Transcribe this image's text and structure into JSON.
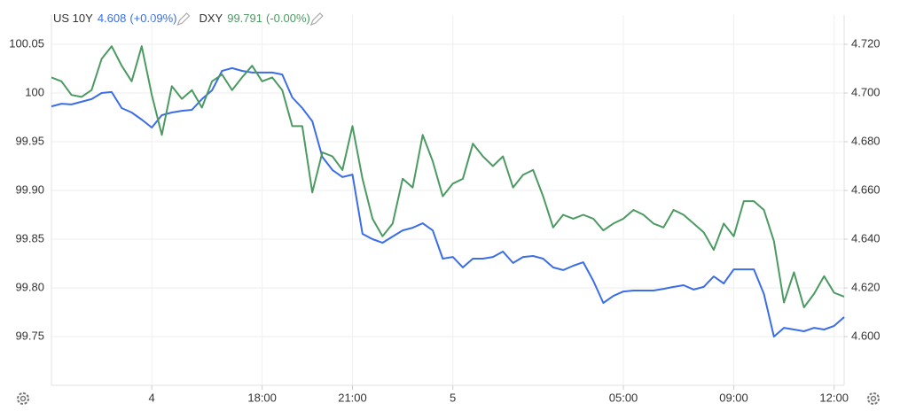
{
  "chart_data": {
    "type": "line",
    "categories": [
      null,
      null,
      null,
      null,
      null,
      null,
      null,
      null,
      null,
      null,
      "4",
      null,
      null,
      null,
      null,
      null,
      null,
      null,
      null,
      null,
      null,
      "18:00",
      null,
      null,
      null,
      null,
      null,
      null,
      null,
      null,
      "21:00",
      null,
      null,
      null,
      null,
      null,
      null,
      null,
      null,
      null,
      "5",
      null,
      null,
      null,
      null,
      null,
      null,
      null,
      null,
      null,
      null,
      null,
      null,
      null,
      null,
      null,
      null,
      "05:00",
      null,
      null,
      null,
      null,
      null,
      null,
      null,
      null,
      null,
      null,
      "09:00",
      null,
      null,
      null,
      null,
      null,
      null,
      null,
      null,
      null,
      "12:00",
      null
    ],
    "series": [
      {
        "name": "US 10Y",
        "color": "#3b6de8",
        "axis": "y2",
        "value_label": "4.608",
        "change": "(+0.09%)",
        "values": [
          4.6945,
          4.6956,
          4.6953,
          4.6964,
          4.6975,
          4.7,
          4.7004,
          4.6938,
          4.692,
          4.6891,
          4.6858,
          4.6909,
          4.692,
          4.6927,
          4.6931,
          4.6975,
          4.7011,
          4.7091,
          4.7102,
          4.7091,
          4.7084,
          4.7084,
          4.7084,
          4.7076,
          4.6982,
          4.6938,
          4.6884,
          4.6738,
          4.6684,
          4.6655,
          4.6665,
          4.6422,
          4.64,
          4.6385,
          4.6411,
          4.6436,
          4.6447,
          4.6465,
          4.6436,
          4.632,
          4.6327,
          4.6284,
          4.632,
          4.632,
          4.6327,
          4.6349,
          4.6302,
          4.6327,
          4.6331,
          4.632,
          4.6284,
          4.6273,
          4.6291,
          4.6305,
          4.6229,
          4.6138,
          4.6167,
          4.6185,
          4.6189,
          4.6189,
          4.6189,
          4.6196,
          4.6204,
          4.6211,
          4.6193,
          4.6204,
          4.6247,
          4.6218,
          4.6276,
          4.6276,
          4.6276,
          4.6175,
          4.6,
          4.6036,
          4.6029,
          4.6022,
          4.6036,
          4.6029,
          4.6044,
          4.608
        ]
      },
      {
        "name": "DXY",
        "color": "#4c9a62",
        "value_label": "99.791",
        "change": "(-0.00%)",
        "values": [
          100.016,
          100.012,
          99.998,
          99.996,
          100.003,
          100.035,
          100.048,
          100.028,
          100.012,
          100.048,
          99.998,
          99.957,
          100.007,
          99.994,
          100.003,
          99.985,
          100.012,
          100.019,
          100.003,
          100.016,
          100.028,
          100.012,
          100.016,
          100.003,
          99.966,
          99.966,
          99.898,
          99.939,
          99.935,
          99.921,
          99.966,
          99.912,
          99.871,
          99.853,
          99.866,
          99.912,
          99.903,
          99.957,
          99.93,
          99.894,
          99.907,
          99.912,
          99.948,
          99.935,
          99.925,
          99.935,
          99.903,
          99.916,
          99.921,
          99.894,
          99.862,
          99.875,
          99.871,
          99.875,
          99.871,
          99.859,
          99.866,
          99.871,
          99.88,
          99.875,
          99.866,
          99.862,
          99.88,
          99.875,
          99.866,
          99.857,
          99.839,
          99.866,
          99.853,
          99.889,
          99.889,
          99.88,
          99.848,
          99.785,
          99.816,
          99.78,
          99.794,
          99.812,
          99.795,
          99.791
        ]
      }
    ],
    "ylim": [
      99.7,
      100.08
    ],
    "yticks": [
      99.75,
      {
        "value": 99.8,
        "label": "99.80"
      },
      99.85,
      {
        "value": 99.9,
        "label": "99.90"
      },
      99.95,
      100,
      100.05
    ],
    "y2lim": [
      4.58,
      4.732
    ],
    "y2ticks": [
      {
        "value": 4.6,
        "label": "4.600"
      },
      {
        "value": 4.62,
        "label": "4.620"
      },
      {
        "value": 4.64,
        "label": "4.640"
      },
      {
        "value": 4.66,
        "label": "4.660"
      },
      {
        "value": 4.68,
        "label": "4.680"
      },
      {
        "value": 4.7,
        "label": "4.700"
      },
      {
        "value": 4.72,
        "label": "4.720"
      }
    ],
    "grid": true
  }
}
